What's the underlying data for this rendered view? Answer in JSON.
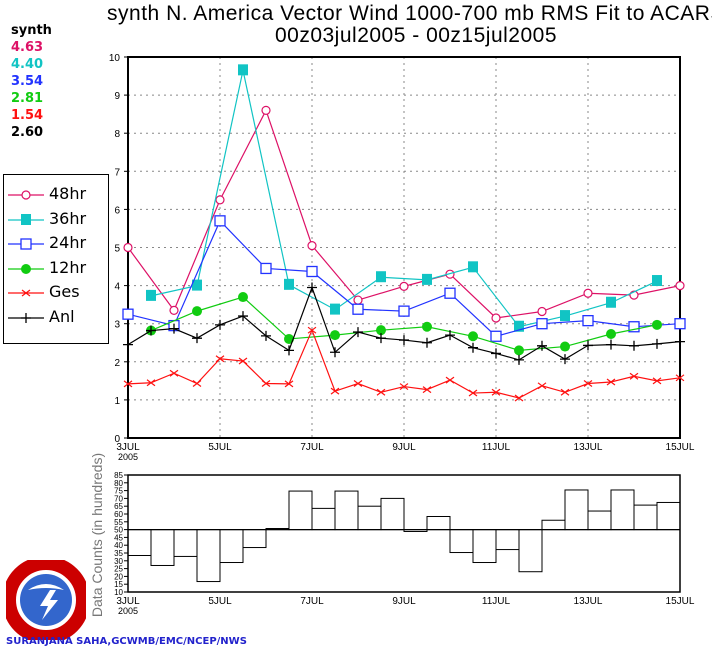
{
  "title": [
    "synth N. America Vector Wind 1000-700 mb RMS Fit to ACARS",
    "00z03jul2005 - 00z15jul2005"
  ],
  "stats": {
    "header": "synth",
    "rows": [
      {
        "v": "4.63",
        "color": "#dd1166"
      },
      {
        "v": "4.40",
        "color": "#11c4c4"
      },
      {
        "v": "3.54",
        "color": "#2233ff"
      },
      {
        "v": "2.81",
        "color": "#11cc11"
      },
      {
        "v": "1.54",
        "color": "#ff1111"
      },
      {
        "v": "2.60",
        "color": "#000000"
      }
    ]
  },
  "credit": "SURANJANA SAHA,GCWMB/EMC/NCEP/NWS",
  "logo_text": "NATIONAL WEATHER SERVICE",
  "chart_data": [
    {
      "type": "line",
      "ylim": [
        0,
        10
      ],
      "yticks": [
        "0",
        "1",
        "2",
        "3",
        "4",
        "5",
        "6",
        "7",
        "8",
        "9",
        "10"
      ],
      "xticks": [
        "3JUL",
        "5JUL",
        "7JUL",
        "9JUL",
        "11JUL",
        "13JUL",
        "15JUL"
      ],
      "xsub": "2005",
      "xrange_days": [
        3,
        15
      ],
      "grid": true,
      "series": [
        {
          "name": "48hr",
          "color": "#dd1166",
          "marker": "circle",
          "x": [
            3,
            4,
            5,
            6,
            7,
            8,
            9,
            10,
            11,
            12,
            13,
            14,
            15
          ],
          "y": [
            5.0,
            3.35,
            6.25,
            8.6,
            5.05,
            3.62,
            3.98,
            4.3,
            3.15,
            3.32,
            3.8,
            3.75,
            4.0
          ]
        },
        {
          "name": "36hr",
          "color": "#11c4c4",
          "marker": "filled-square",
          "x": [
            3.5,
            4.5,
            5.5,
            6.5,
            7.5,
            8.5,
            9.5,
            10.5,
            11.5,
            12.5,
            13.5,
            14.5
          ],
          "y": [
            3.73,
            4.0,
            9.65,
            4.02,
            3.37,
            4.22,
            4.15,
            4.48,
            2.92,
            3.2,
            3.55,
            4.12
          ]
        },
        {
          "name": "24hr",
          "color": "#2233ff",
          "marker": "square",
          "x": [
            3,
            4,
            5,
            6,
            7,
            8,
            9,
            10,
            11,
            12,
            13,
            14,
            15
          ],
          "y": [
            3.25,
            2.95,
            5.7,
            4.45,
            4.37,
            3.38,
            3.33,
            3.8,
            2.67,
            3.0,
            3.08,
            2.92,
            3.0
          ]
        },
        {
          "name": "12hr",
          "color": "#11cc11",
          "marker": "filled-circle",
          "x": [
            3.5,
            4.5,
            5.5,
            6.5,
            7.5,
            8.5,
            9.5,
            10.5,
            11.5,
            12.5,
            13.5,
            14.5
          ],
          "y": [
            2.82,
            3.33,
            3.7,
            2.6,
            2.7,
            2.83,
            2.92,
            2.67,
            2.3,
            2.4,
            2.73,
            2.97
          ]
        },
        {
          "name": "Ges",
          "color": "#ff1111",
          "marker": "x",
          "x": [
            3,
            3.5,
            4,
            4.5,
            5,
            5.5,
            6,
            6.5,
            7,
            7.5,
            8,
            8.5,
            9,
            9.5,
            10,
            10.5,
            11,
            11.5,
            12,
            12.5,
            13,
            13.5,
            14,
            14.5,
            15
          ],
          "y": [
            1.42,
            1.45,
            1.7,
            1.43,
            2.08,
            2.02,
            1.43,
            1.42,
            2.83,
            1.23,
            1.43,
            1.2,
            1.35,
            1.27,
            1.52,
            1.18,
            1.2,
            1.05,
            1.37,
            1.2,
            1.43,
            1.47,
            1.62,
            1.5,
            1.58
          ]
        },
        {
          "name": "Anl",
          "color": "#000000",
          "marker": "plus",
          "x": [
            3,
            3.5,
            4,
            4.5,
            5,
            5.5,
            6,
            6.5,
            7,
            7.5,
            8,
            8.5,
            9,
            9.5,
            10,
            10.5,
            11,
            11.5,
            12,
            12.5,
            13,
            13.5,
            14,
            14.5,
            15
          ],
          "y": [
            2.45,
            2.82,
            2.87,
            2.62,
            2.97,
            3.2,
            2.68,
            2.3,
            3.95,
            2.25,
            2.78,
            2.62,
            2.57,
            2.5,
            2.7,
            2.37,
            2.22,
            2.05,
            2.42,
            2.07,
            2.43,
            2.45,
            2.42,
            2.47,
            2.53
          ]
        }
      ]
    },
    {
      "type": "bar",
      "ylabel": "Data Counts (in hundreds)",
      "ylim": [
        10,
        85
      ],
      "baseline": 50,
      "yticks": [
        "10",
        "15",
        "20",
        "25",
        "30",
        "35",
        "40",
        "45",
        "50",
        "55",
        "60",
        "65",
        "70",
        "75",
        "80",
        "85"
      ],
      "xticks": [
        "3JUL",
        "5JUL",
        "7JUL",
        "9JUL",
        "11JUL",
        "13JUL",
        "15JUL"
      ],
      "xsub": "2005",
      "values": [
        33.4,
        27,
        32.8,
        16.7,
        28.9,
        38.5,
        50.7,
        74.7,
        63.6,
        74.7,
        65,
        70,
        48.8,
        58.4,
        35.3,
        28.9,
        37.2,
        23,
        56,
        75.4,
        61.9,
        75.4,
        65.7,
        67.4
      ]
    }
  ]
}
